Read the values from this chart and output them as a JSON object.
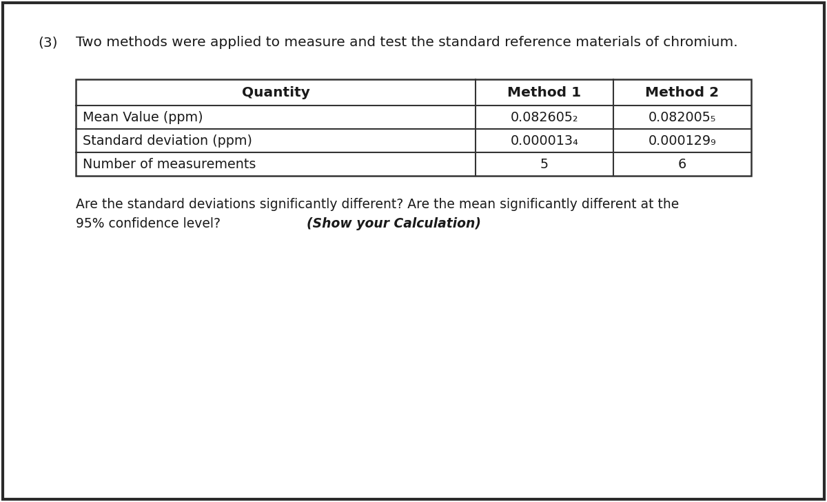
{
  "problem_number": "(3)",
  "intro_text": "Two methods were applied to measure and test the standard reference materials of chromium.",
  "table_headers": [
    "Quantity",
    "Method 1",
    "Method 2"
  ],
  "table_rows": [
    [
      "Mean Value (ppm)",
      "0.082605₂",
      "0.082005₅"
    ],
    [
      "Standard deviation (ppm)",
      "0.000013₄",
      "0.000129₉"
    ],
    [
      "Number of measurements",
      "5",
      "6"
    ]
  ],
  "question_line1": "Are the standard deviations significantly different? Are the mean significantly different at the",
  "question_line2": "95% confidence level?",
  "question_bold": "(Show your Calculation)",
  "bg_color": "#ffffff",
  "border_color": "#333333",
  "text_color": "#1a1a1a",
  "font_size_intro": 14.5,
  "font_size_table_header": 14.5,
  "font_size_table_data": 13.8,
  "font_size_question": 13.5
}
